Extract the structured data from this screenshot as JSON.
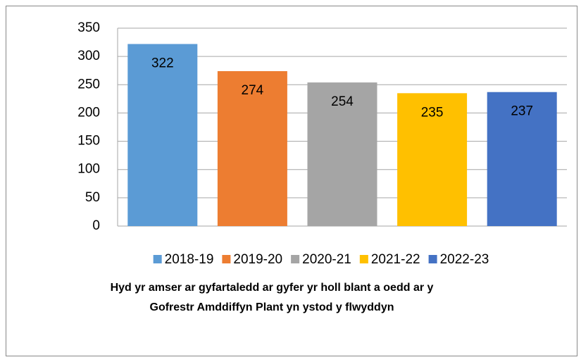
{
  "chart_data": {
    "type": "bar",
    "title": [
      "Hyd yr amser ar gyfartaledd ar gyfer yr holl blant a oedd ar y",
      "Gofrestr Amddiffyn Plant yn ystod y flwyddyn"
    ],
    "categories": [
      null
    ],
    "series": [
      {
        "name": "2018-19",
        "color": "#5b9bd5",
        "values": [
          322
        ]
      },
      {
        "name": "2019-20",
        "color": "#ed7d31",
        "values": [
          274
        ]
      },
      {
        "name": "2020-21",
        "color": "#a5a5a5",
        "values": [
          254
        ]
      },
      {
        "name": "2021-22",
        "color": "#ffc000",
        "values": [
          235
        ]
      },
      {
        "name": "2022-23",
        "color": "#4472c4",
        "values": [
          237
        ]
      }
    ],
    "ylim": [
      0,
      350
    ],
    "yticks": [
      0,
      50,
      100,
      150,
      200,
      250,
      300,
      350
    ],
    "grid": true,
    "legend": "bottom"
  }
}
